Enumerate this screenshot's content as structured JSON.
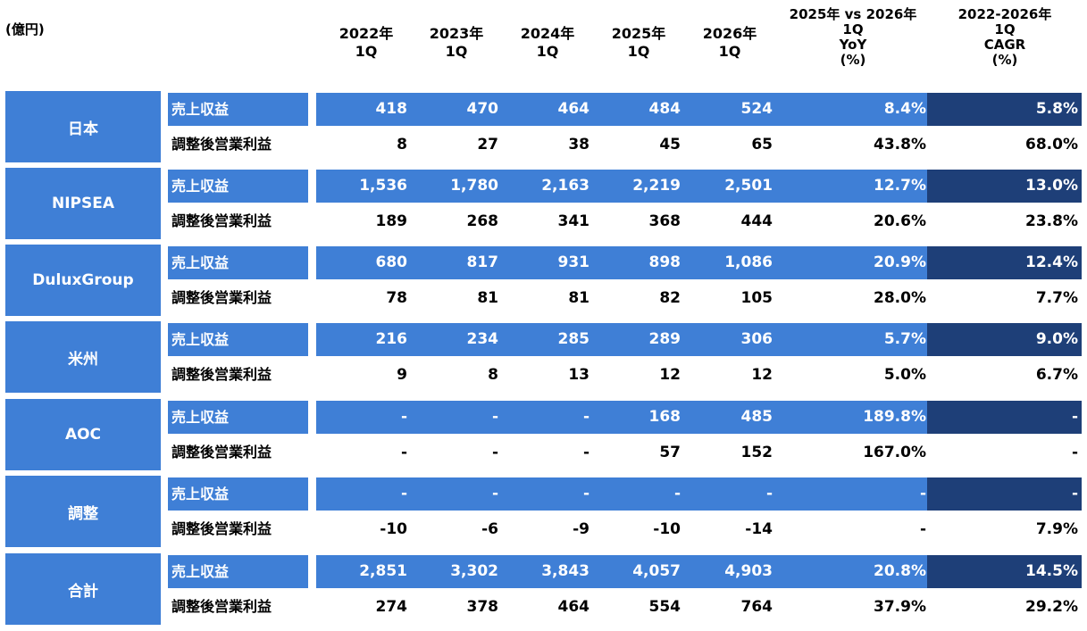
{
  "unit_label": "(億円)",
  "columns": {
    "y2022": [
      "2022年",
      "1Q"
    ],
    "y2023": [
      "2023年",
      "1Q"
    ],
    "y2024": [
      "2024年",
      "1Q"
    ],
    "y2025": [
      "2025年",
      "1Q"
    ],
    "y2026": [
      "2026年",
      "1Q"
    ],
    "yoy": [
      "2025年 vs 2026年",
      "1Q",
      "YoY",
      "(%)"
    ],
    "cagr": [
      "2022-2026年",
      "1Q",
      "CAGR",
      "(%)"
    ]
  },
  "row_labels": {
    "revenue": "売上収益",
    "op_profit": "調整後営業利益"
  },
  "segments": [
    {
      "name": "日本",
      "revenue": [
        "418",
        "470",
        "464",
        "484",
        "524",
        "8.4%",
        "5.8%"
      ],
      "op_profit": [
        "8",
        "27",
        "38",
        "45",
        "65",
        "43.8%",
        "68.0%"
      ]
    },
    {
      "name": "NIPSEA",
      "revenue": [
        "1,536",
        "1,780",
        "2,163",
        "2,219",
        "2,501",
        "12.7%",
        "13.0%"
      ],
      "op_profit": [
        "189",
        "268",
        "341",
        "368",
        "444",
        "20.6%",
        "23.8%"
      ]
    },
    {
      "name": "DuluxGroup",
      "revenue": [
        "680",
        "817",
        "931",
        "898",
        "1,086",
        "20.9%",
        "12.4%"
      ],
      "op_profit": [
        "78",
        "81",
        "81",
        "82",
        "105",
        "28.0%",
        "7.7%"
      ]
    },
    {
      "name": "米州",
      "revenue": [
        "216",
        "234",
        "285",
        "289",
        "306",
        "5.7%",
        "9.0%"
      ],
      "op_profit": [
        "9",
        "8",
        "13",
        "12",
        "12",
        "5.0%",
        "6.7%"
      ]
    },
    {
      "name": "AOC",
      "revenue": [
        "-",
        "-",
        "-",
        "168",
        "485",
        "189.8%",
        "-"
      ],
      "op_profit": [
        "-",
        "-",
        "-",
        "57",
        "152",
        "167.0%",
        "-"
      ]
    },
    {
      "name": "調整",
      "revenue": [
        "-",
        "-",
        "-",
        "-",
        "-",
        "-",
        "-"
      ],
      "op_profit": [
        "-10",
        "-6",
        "-9",
        "-10",
        "-14",
        "-",
        "7.9%"
      ]
    },
    {
      "name": "合計",
      "revenue": [
        "2,851",
        "3,302",
        "3,843",
        "4,057",
        "4,903",
        "20.8%",
        "14.5%"
      ],
      "op_profit": [
        "274",
        "378",
        "464",
        "554",
        "764",
        "37.9%",
        "29.2%"
      ]
    }
  ]
}
